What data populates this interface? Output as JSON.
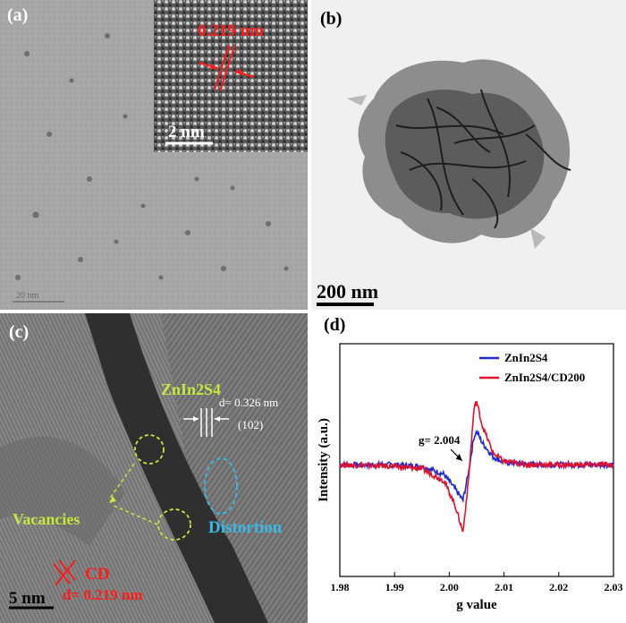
{
  "panels": {
    "a": {
      "label": "(a)",
      "inset_spacing": "0.219 nm",
      "inset_scale": "2 nm",
      "main_scale": "20 nm"
    },
    "b": {
      "label": "(b)",
      "scale": "200 nm"
    },
    "c": {
      "label": "(c)",
      "phase": "ZnIn2S4",
      "d_spacing": "d= 0.326 nm",
      "plane": "(102)",
      "vacancies": "Vacancies",
      "distortion": "Distortion",
      "cd_label": "CD",
      "cd_spacing": "d= 0.219 nm",
      "scale": "5 nm"
    },
    "d": {
      "label": "(d)"
    }
  },
  "colors": {
    "blue_series": "#1f2bd6",
    "red_series": "#e3122a",
    "annot_red": "#ff1a1a",
    "annot_yellow": "#c8e63c",
    "annot_cyan": "#3ab8e6"
  },
  "chart_data": {
    "type": "line",
    "xlabel": "g value",
    "ylabel": "Intensity (a.u.)",
    "xlim": [
      1.98,
      2.03
    ],
    "xticks": [
      "1.98",
      "1.99",
      "2.00",
      "2.01",
      "2.02",
      "2.03"
    ],
    "annotation": "g= 2.004",
    "legend_position": "top-right",
    "series": [
      {
        "name": "ZnIn2S4",
        "color": "#1f2bd6",
        "points": [
          [
            1.98,
            0.0
          ],
          [
            1.99,
            0.0
          ],
          [
            1.995,
            -0.02
          ],
          [
            1.999,
            -0.12
          ],
          [
            2.001,
            -0.3
          ],
          [
            2.0025,
            -0.45
          ],
          [
            2.0035,
            -0.1
          ],
          [
            2.0045,
            0.35
          ],
          [
            2.005,
            0.42
          ],
          [
            2.006,
            0.28
          ],
          [
            2.008,
            0.1
          ],
          [
            2.01,
            0.03
          ],
          [
            2.015,
            0.0
          ],
          [
            2.03,
            0.0
          ]
        ]
      },
      {
        "name": "ZnIn2S4/CD200",
        "color": "#e3122a",
        "points": [
          [
            1.98,
            0.0
          ],
          [
            1.99,
            -0.02
          ],
          [
            1.995,
            -0.05
          ],
          [
            1.999,
            -0.2
          ],
          [
            2.001,
            -0.5
          ],
          [
            2.0025,
            -0.85
          ],
          [
            2.0035,
            -0.2
          ],
          [
            2.0045,
            0.7
          ],
          [
            2.005,
            0.8
          ],
          [
            2.006,
            0.5
          ],
          [
            2.008,
            0.15
          ],
          [
            2.01,
            0.04
          ],
          [
            2.015,
            0.0
          ],
          [
            2.03,
            0.0
          ]
        ]
      }
    ]
  }
}
